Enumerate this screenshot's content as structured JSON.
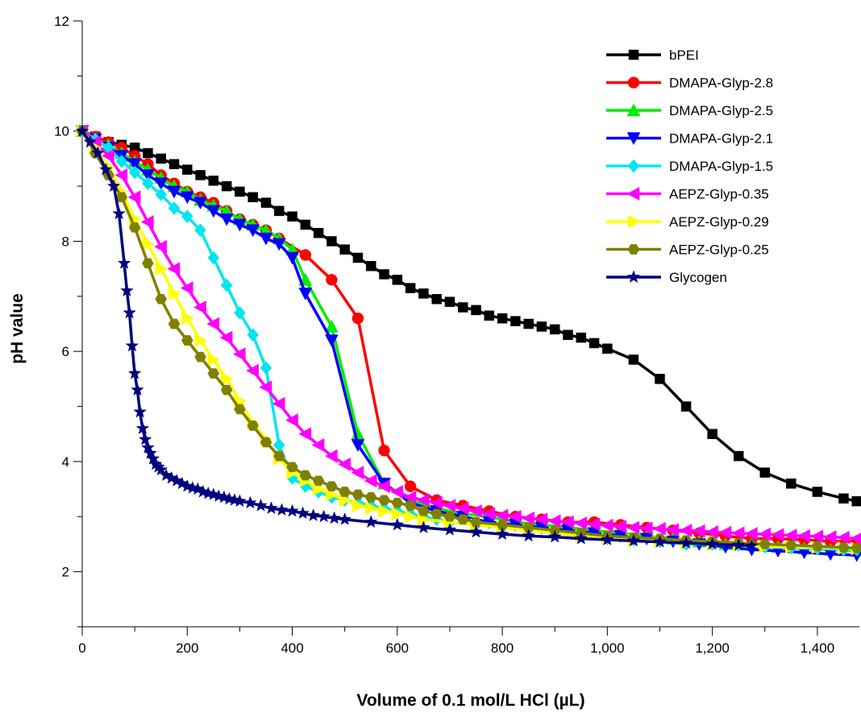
{
  "chart_data": {
    "type": "line",
    "title": "",
    "xlabel": "Volume of 0.1 mol/L HCl (µL)",
    "ylabel": "pH value",
    "xlim": [
      0,
      1480
    ],
    "ylim": [
      1,
      12
    ],
    "x_ticks": [
      0,
      200,
      400,
      600,
      800,
      1000,
      1200,
      1400
    ],
    "x_tick_labels": [
      "0",
      "200",
      "400",
      "600",
      "800",
      "1,000",
      "1,200",
      "1,400"
    ],
    "y_ticks": [
      2,
      4,
      6,
      8,
      10,
      12
    ],
    "y_tick_labels": [
      "2",
      "4",
      "6",
      "8",
      "10",
      "12"
    ],
    "grid": false,
    "legend_position": "top-right",
    "series": [
      {
        "name": "bPEI",
        "color": "#000000",
        "marker": "square",
        "x": [
          0,
          25,
          50,
          75,
          100,
          125,
          150,
          175,
          200,
          225,
          250,
          275,
          300,
          325,
          350,
          375,
          400,
          425,
          450,
          475,
          500,
          525,
          550,
          575,
          600,
          625,
          650,
          675,
          700,
          725,
          750,
          775,
          800,
          825,
          850,
          875,
          900,
          925,
          950,
          975,
          1000,
          1050,
          1100,
          1150,
          1200,
          1250,
          1300,
          1350,
          1400,
          1450,
          1475
        ],
        "y": [
          10.0,
          9.9,
          9.8,
          9.75,
          9.7,
          9.6,
          9.5,
          9.4,
          9.3,
          9.2,
          9.1,
          9.0,
          8.9,
          8.8,
          8.7,
          8.55,
          8.45,
          8.3,
          8.15,
          8.0,
          7.85,
          7.7,
          7.55,
          7.4,
          7.3,
          7.15,
          7.05,
          6.95,
          6.9,
          6.8,
          6.75,
          6.65,
          6.6,
          6.55,
          6.5,
          6.45,
          6.4,
          6.3,
          6.25,
          6.15,
          6.05,
          5.85,
          5.5,
          5.0,
          4.5,
          4.1,
          3.8,
          3.6,
          3.45,
          3.33,
          3.28
        ]
      },
      {
        "name": "DMAPA-Glyp-2.8",
        "color": "#ff0000",
        "marker": "circle",
        "x": [
          0,
          25,
          50,
          75,
          100,
          125,
          150,
          175,
          200,
          225,
          250,
          275,
          300,
          325,
          350,
          375,
          425,
          475,
          525,
          575,
          625,
          675,
          725,
          775,
          825,
          875,
          925,
          975,
          1025,
          1075,
          1125,
          1175,
          1225,
          1275,
          1325,
          1375,
          1425,
          1475
        ],
        "y": [
          10.0,
          9.9,
          9.8,
          9.7,
          9.55,
          9.4,
          9.2,
          9.05,
          8.9,
          8.8,
          8.7,
          8.55,
          8.4,
          8.3,
          8.2,
          8.05,
          7.75,
          7.3,
          6.6,
          4.2,
          3.55,
          3.3,
          3.2,
          3.1,
          3.0,
          2.95,
          2.9,
          2.9,
          2.85,
          2.8,
          2.75,
          2.7,
          2.65,
          2.6,
          2.6,
          2.58,
          2.55,
          2.55
        ]
      },
      {
        "name": "DMAPA-Glyp-2.5",
        "color": "#00ee00",
        "marker": "triangle-up",
        "x": [
          0,
          25,
          50,
          75,
          100,
          125,
          150,
          175,
          200,
          225,
          250,
          275,
          300,
          325,
          350,
          375,
          400,
          425,
          475,
          525,
          575,
          625,
          675,
          725,
          775,
          825,
          875,
          925,
          975,
          1025,
          1075,
          1125,
          1175,
          1225,
          1275,
          1325,
          1375,
          1425,
          1475
        ],
        "y": [
          10.0,
          9.85,
          9.75,
          9.6,
          9.45,
          9.3,
          9.15,
          9.0,
          8.9,
          8.75,
          8.65,
          8.55,
          8.4,
          8.3,
          8.2,
          8.05,
          7.85,
          7.3,
          6.45,
          4.5,
          3.6,
          3.3,
          3.15,
          3.05,
          3.0,
          2.9,
          2.85,
          2.8,
          2.75,
          2.7,
          2.65,
          2.6,
          2.55,
          2.5,
          2.5,
          2.45,
          2.42,
          2.4,
          2.38
        ]
      },
      {
        "name": "DMAPA-Glyp-2.1",
        "color": "#0000ff",
        "marker": "triangle-down",
        "x": [
          0,
          25,
          50,
          75,
          100,
          125,
          150,
          175,
          200,
          225,
          250,
          275,
          300,
          325,
          350,
          375,
          400,
          425,
          475,
          525,
          575,
          625,
          675,
          725,
          775,
          825,
          875,
          925,
          975,
          1025,
          1075,
          1125,
          1175,
          1225,
          1275,
          1325,
          1375,
          1425,
          1475
        ],
        "y": [
          10.0,
          9.85,
          9.7,
          9.55,
          9.4,
          9.2,
          9.05,
          8.9,
          8.8,
          8.7,
          8.55,
          8.4,
          8.3,
          8.2,
          8.05,
          7.95,
          7.7,
          7.05,
          6.2,
          4.3,
          3.6,
          3.25,
          3.1,
          3.0,
          2.9,
          2.85,
          2.8,
          2.75,
          2.7,
          2.65,
          2.6,
          2.55,
          2.5,
          2.45,
          2.4,
          2.38,
          2.35,
          2.32,
          2.3
        ]
      },
      {
        "name": "DMAPA-Glyp-1.5",
        "color": "#00e5ee",
        "marker": "diamond",
        "x": [
          0,
          25,
          50,
          75,
          100,
          125,
          150,
          175,
          200,
          225,
          250,
          275,
          300,
          325,
          350,
          375,
          400,
          425,
          450,
          475,
          500,
          525,
          550,
          575,
          600,
          625,
          650,
          675,
          700,
          750,
          800,
          850,
          900,
          950,
          1000,
          1050,
          1100,
          1150,
          1200,
          1250,
          1300,
          1350,
          1400,
          1450,
          1475
        ],
        "y": [
          10.0,
          9.85,
          9.7,
          9.45,
          9.25,
          9.05,
          8.85,
          8.6,
          8.45,
          8.2,
          7.7,
          7.2,
          6.7,
          6.3,
          5.7,
          4.3,
          3.7,
          3.55,
          3.45,
          3.35,
          3.3,
          3.25,
          3.2,
          3.15,
          3.1,
          3.05,
          3.0,
          2.95,
          2.9,
          2.85,
          2.8,
          2.75,
          2.7,
          2.65,
          2.6,
          2.58,
          2.55,
          2.5,
          2.5,
          2.48,
          2.45,
          2.43,
          2.42,
          2.4,
          2.4
        ]
      },
      {
        "name": "AEPZ-Glyp-0.35",
        "color": "#ff00ff",
        "marker": "triangle-left",
        "x": [
          0,
          25,
          50,
          75,
          100,
          125,
          150,
          175,
          200,
          225,
          250,
          275,
          300,
          325,
          350,
          375,
          400,
          425,
          450,
          475,
          500,
          525,
          550,
          575,
          600,
          625,
          650,
          675,
          700,
          725,
          750,
          775,
          800,
          825,
          850,
          875,
          900,
          925,
          950,
          975,
          1000,
          1025,
          1050,
          1075,
          1100,
          1125,
          1150,
          1175,
          1200,
          1225,
          1250,
          1275,
          1300,
          1325,
          1350,
          1375,
          1400,
          1425,
          1450,
          1475
        ],
        "y": [
          10.0,
          9.8,
          9.55,
          9.2,
          8.8,
          8.35,
          7.9,
          7.5,
          7.15,
          6.8,
          6.5,
          6.25,
          5.95,
          5.65,
          5.35,
          5.05,
          4.75,
          4.5,
          4.3,
          4.1,
          3.95,
          3.8,
          3.65,
          3.55,
          3.45,
          3.35,
          3.3,
          3.25,
          3.2,
          3.15,
          3.1,
          3.05,
          3.02,
          3.0,
          2.97,
          2.95,
          2.92,
          2.9,
          2.88,
          2.86,
          2.84,
          2.82,
          2.8,
          2.79,
          2.78,
          2.76,
          2.75,
          2.74,
          2.72,
          2.71,
          2.7,
          2.69,
          2.68,
          2.67,
          2.66,
          2.65,
          2.64,
          2.63,
          2.62,
          2.6
        ]
      },
      {
        "name": "AEPZ-Glyp-0.29",
        "color": "#ffff00",
        "marker": "triangle-right",
        "x": [
          0,
          25,
          50,
          75,
          100,
          125,
          150,
          175,
          200,
          225,
          250,
          275,
          300,
          325,
          350,
          375,
          400,
          425,
          450,
          475,
          500,
          525,
          550,
          575,
          600,
          625,
          650,
          700,
          750,
          800,
          850,
          900,
          950,
          1000,
          1050,
          1100,
          1150,
          1200,
          1250,
          1300,
          1350,
          1400,
          1450,
          1475
        ],
        "y": [
          10.0,
          9.7,
          9.35,
          8.9,
          8.4,
          7.95,
          7.5,
          7.05,
          6.6,
          6.2,
          5.85,
          5.5,
          5.1,
          4.7,
          4.4,
          4.05,
          3.8,
          3.65,
          3.5,
          3.4,
          3.3,
          3.2,
          3.15,
          3.1,
          3.05,
          3.0,
          2.95,
          2.9,
          2.85,
          2.8,
          2.75,
          2.7,
          2.65,
          2.6,
          2.57,
          2.55,
          2.52,
          2.5,
          2.48,
          2.46,
          2.45,
          2.44,
          2.43,
          2.42
        ]
      },
      {
        "name": "AEPZ-Glyp-0.25",
        "color": "#808000",
        "marker": "hexagon",
        "x": [
          0,
          25,
          50,
          75,
          100,
          125,
          150,
          175,
          200,
          225,
          250,
          275,
          300,
          325,
          350,
          375,
          400,
          425,
          450,
          475,
          500,
          525,
          550,
          575,
          600,
          625,
          650,
          675,
          700,
          725,
          750,
          800,
          850,
          900,
          950,
          1000,
          1050,
          1100,
          1150,
          1200,
          1250,
          1300,
          1350,
          1400,
          1450,
          1475
        ],
        "y": [
          10.0,
          9.6,
          9.2,
          8.8,
          8.25,
          7.6,
          6.95,
          6.5,
          6.2,
          5.9,
          5.6,
          5.3,
          4.95,
          4.65,
          4.35,
          4.1,
          3.9,
          3.75,
          3.65,
          3.55,
          3.45,
          3.4,
          3.35,
          3.3,
          3.25,
          3.2,
          3.1,
          3.05,
          3.0,
          2.95,
          2.9,
          2.85,
          2.8,
          2.75,
          2.7,
          2.65,
          2.62,
          2.6,
          2.57,
          2.55,
          2.52,
          2.5,
          2.48,
          2.46,
          2.44,
          2.43
        ]
      },
      {
        "name": "Glycogen",
        "color": "#000080",
        "marker": "star",
        "x": [
          0,
          15,
          30,
          45,
          60,
          70,
          80,
          85,
          90,
          95,
          100,
          105,
          110,
          115,
          120,
          125,
          130,
          135,
          140,
          145,
          150,
          160,
          170,
          180,
          190,
          200,
          210,
          220,
          230,
          240,
          250,
          260,
          270,
          280,
          290,
          300,
          320,
          340,
          360,
          380,
          400,
          420,
          440,
          460,
          480,
          500,
          550,
          600,
          650,
          700,
          750,
          800,
          850,
          900,
          950,
          1000,
          1050,
          1100,
          1150,
          1200,
          1250,
          1275
        ],
        "y": [
          10.0,
          9.8,
          9.6,
          9.3,
          9.0,
          8.5,
          7.6,
          7.1,
          6.7,
          6.1,
          5.6,
          5.3,
          4.9,
          4.6,
          4.4,
          4.25,
          4.15,
          4.05,
          3.95,
          3.9,
          3.85,
          3.75,
          3.7,
          3.65,
          3.6,
          3.55,
          3.52,
          3.5,
          3.45,
          3.42,
          3.4,
          3.37,
          3.35,
          3.32,
          3.3,
          3.28,
          3.25,
          3.2,
          3.15,
          3.12,
          3.1,
          3.06,
          3.02,
          3.0,
          2.97,
          2.95,
          2.9,
          2.85,
          2.8,
          2.76,
          2.72,
          2.68,
          2.65,
          2.63,
          2.6,
          2.58,
          2.56,
          2.54,
          2.52,
          2.5,
          2.48,
          2.47
        ]
      }
    ]
  }
}
